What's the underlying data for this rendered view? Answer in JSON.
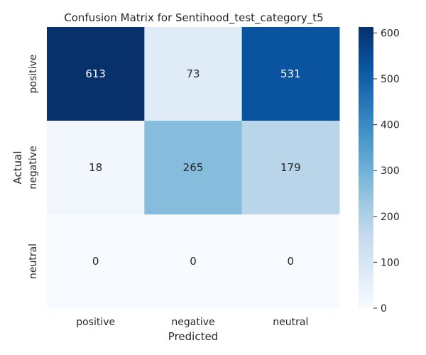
{
  "chart_data": {
    "type": "heatmap",
    "title": "Confusion Matrix for Sentihood_test_category_t5",
    "xlabel": "Predicted",
    "ylabel": "Actual",
    "x_categories": [
      "positive",
      "negative",
      "neutral"
    ],
    "y_categories": [
      "positive",
      "negative",
      "neutral"
    ],
    "values": [
      [
        613,
        73,
        531
      ],
      [
        18,
        265,
        179
      ],
      [
        0,
        0,
        0
      ]
    ],
    "colormap": "Blues",
    "color_range": [
      0,
      613
    ],
    "colorbar_ticks": [
      0,
      100,
      200,
      300,
      400,
      500,
      600
    ]
  }
}
